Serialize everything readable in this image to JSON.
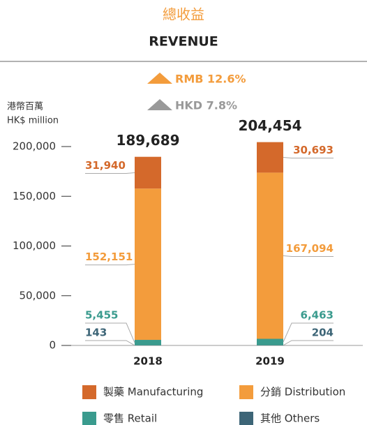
{
  "chart_data": {
    "type": "stacked_bar",
    "title": "總收益",
    "subtitle": "REVENUE",
    "annotations": [
      "RMB 12.6%",
      "HKD 7.8%"
    ],
    "ylabel": [
      "港幣百萬",
      "HK$ million"
    ],
    "categories": [
      "2018",
      "2019"
    ],
    "totals": [
      189689,
      204454
    ],
    "total_labels": [
      "189,689",
      "204,454"
    ],
    "series": [
      {
        "name": "其他 Others",
        "color": "#3d6577",
        "values": [
          143,
          204
        ],
        "value_labels": [
          "143",
          "204"
        ]
      },
      {
        "name": "零售 Retail",
        "color": "#3a9b8e",
        "values": [
          5455,
          6463
        ],
        "value_labels": [
          "5,455",
          "6,463"
        ]
      },
      {
        "name": "分銷 Distribution",
        "color": "#f39c3c",
        "values": [
          152151,
          167094
        ],
        "value_labels": [
          "152,151",
          "167,094"
        ]
      },
      {
        "name": "製藥 Manufacturing",
        "color": "#d4692b",
        "values": [
          31940,
          30693
        ],
        "value_labels": [
          "31,940",
          "30,693"
        ]
      }
    ],
    "ylim": [
      0,
      200000
    ],
    "yticks": [
      0,
      {
        "value": 50000,
        "label": "50,000"
      },
      {
        "value": 100000,
        "label": "100,000"
      },
      {
        "value": 150000,
        "label": "150,000"
      },
      {
        "value": 200000,
        "label": "200,000"
      }
    ],
    "legend": "bottom"
  }
}
